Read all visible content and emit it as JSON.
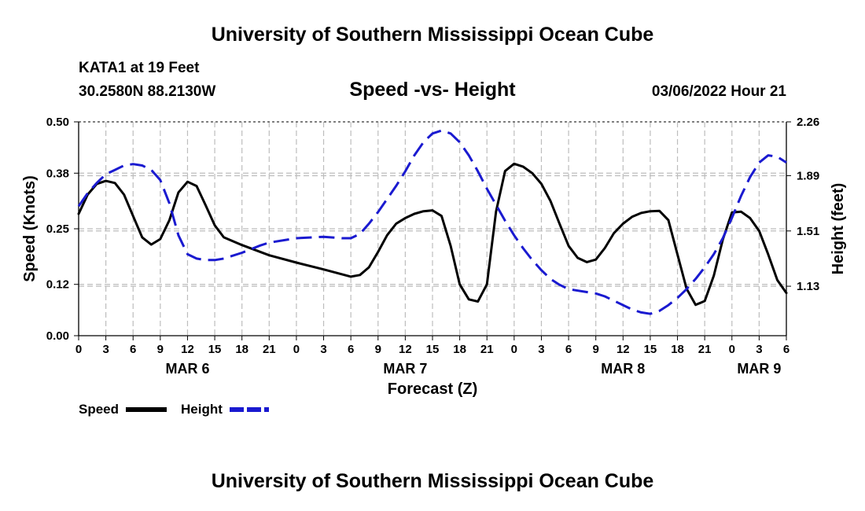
{
  "header": {
    "title": "University of Southern Mississippi Ocean Cube",
    "station": "KATA1 at 19 Feet",
    "coordinates": "30.2580N  88.2130W",
    "datetime": "03/06/2022 Hour 21"
  },
  "footer": {
    "title": "University of Southern Mississippi Ocean Cube"
  },
  "chart_data": {
    "type": "line",
    "title": "Speed -vs- Height",
    "xlabel": "Forecast (Z)",
    "ylabel_left": "Speed (Knots)",
    "ylabel_right": "Height (feet)",
    "x_range_hours": [
      0,
      78
    ],
    "x_tick_step_hours": 3,
    "x_tick_labels": [
      "0",
      "3",
      "6",
      "9",
      "12",
      "15",
      "18",
      "21",
      "0",
      "3",
      "6",
      "9",
      "12",
      "15",
      "18",
      "21",
      "0",
      "3",
      "6",
      "9",
      "12",
      "15",
      "18",
      "21",
      "0",
      "3",
      "6"
    ],
    "date_labels": [
      {
        "label": "MAR 6",
        "hour": 12
      },
      {
        "label": "MAR 7",
        "hour": 36
      },
      {
        "label": "MAR 8",
        "hour": 60
      },
      {
        "label": "MAR 9",
        "hour": 75
      }
    ],
    "ylim_left": [
      0.0,
      0.5
    ],
    "left_ticks": [
      "0.00",
      "0.12",
      "0.25",
      "0.38",
      "0.50"
    ],
    "ylim_right": [
      0.79,
      2.26
    ],
    "right_ticks": [
      "1.13",
      "1.51",
      "1.89",
      "2.26"
    ],
    "grid": true,
    "legend_position": "bottom-left",
    "series": [
      {
        "name": "Speed",
        "axis": "left",
        "color": "#000000",
        "style": "solid",
        "points": [
          [
            0,
            0.285
          ],
          [
            1,
            0.33
          ],
          [
            2,
            0.355
          ],
          [
            3,
            0.362
          ],
          [
            4,
            0.357
          ],
          [
            5,
            0.33
          ],
          [
            6,
            0.28
          ],
          [
            7,
            0.23
          ],
          [
            8,
            0.213
          ],
          [
            9,
            0.226
          ],
          [
            10,
            0.27
          ],
          [
            11,
            0.335
          ],
          [
            12,
            0.36
          ],
          [
            13,
            0.35
          ],
          [
            14,
            0.305
          ],
          [
            15,
            0.258
          ],
          [
            16,
            0.23
          ],
          [
            18,
            0.212
          ],
          [
            21,
            0.188
          ],
          [
            24,
            0.171
          ],
          [
            27,
            0.155
          ],
          [
            30,
            0.138
          ],
          [
            31,
            0.142
          ],
          [
            32,
            0.16
          ],
          [
            33,
            0.196
          ],
          [
            34,
            0.235
          ],
          [
            35,
            0.262
          ],
          [
            36,
            0.275
          ],
          [
            37,
            0.285
          ],
          [
            38,
            0.291
          ],
          [
            39,
            0.293
          ],
          [
            40,
            0.28
          ],
          [
            41,
            0.21
          ],
          [
            42,
            0.12
          ],
          [
            43,
            0.085
          ],
          [
            44,
            0.08
          ],
          [
            45,
            0.12
          ],
          [
            46,
            0.29
          ],
          [
            47,
            0.385
          ],
          [
            48,
            0.402
          ],
          [
            49,
            0.395
          ],
          [
            50,
            0.38
          ],
          [
            51,
            0.355
          ],
          [
            52,
            0.315
          ],
          [
            53,
            0.262
          ],
          [
            54,
            0.21
          ],
          [
            55,
            0.182
          ],
          [
            56,
            0.172
          ],
          [
            57,
            0.178
          ],
          [
            58,
            0.205
          ],
          [
            59,
            0.24
          ],
          [
            60,
            0.262
          ],
          [
            61,
            0.278
          ],
          [
            62,
            0.287
          ],
          [
            63,
            0.291
          ],
          [
            64,
            0.292
          ],
          [
            65,
            0.27
          ],
          [
            66,
            0.19
          ],
          [
            67,
            0.11
          ],
          [
            68,
            0.072
          ],
          [
            69,
            0.081
          ],
          [
            70,
            0.14
          ],
          [
            71,
            0.225
          ],
          [
            72,
            0.288
          ],
          [
            73,
            0.29
          ],
          [
            74,
            0.275
          ],
          [
            75,
            0.245
          ],
          [
            76,
            0.19
          ],
          [
            77,
            0.13
          ],
          [
            78,
            0.1
          ]
        ]
      },
      {
        "name": "Height",
        "axis": "right",
        "color": "#1a1ad0",
        "style": "dashed",
        "points": [
          [
            0,
            1.68
          ],
          [
            1,
            1.77
          ],
          [
            2,
            1.84
          ],
          [
            3,
            1.9
          ],
          [
            4,
            1.93
          ],
          [
            5,
            1.96
          ],
          [
            6,
            1.97
          ],
          [
            7,
            1.96
          ],
          [
            8,
            1.93
          ],
          [
            9,
            1.86
          ],
          [
            10,
            1.7
          ],
          [
            11,
            1.48
          ],
          [
            12,
            1.35
          ],
          [
            13,
            1.32
          ],
          [
            14,
            1.31
          ],
          [
            15,
            1.31
          ],
          [
            16,
            1.32
          ],
          [
            18,
            1.36
          ],
          [
            20,
            1.41
          ],
          [
            21,
            1.43
          ],
          [
            24,
            1.46
          ],
          [
            27,
            1.47
          ],
          [
            29,
            1.46
          ],
          [
            30,
            1.46
          ],
          [
            31,
            1.49
          ],
          [
            32,
            1.56
          ],
          [
            33,
            1.64
          ],
          [
            34,
            1.73
          ],
          [
            35,
            1.82
          ],
          [
            36,
            1.92
          ],
          [
            37,
            2.03
          ],
          [
            38,
            2.12
          ],
          [
            39,
            2.18
          ],
          [
            40,
            2.2
          ],
          [
            41,
            2.18
          ],
          [
            42,
            2.12
          ],
          [
            43,
            2.03
          ],
          [
            44,
            1.92
          ],
          [
            45,
            1.8
          ],
          [
            46,
            1.69
          ],
          [
            47,
            1.58
          ],
          [
            48,
            1.48
          ],
          [
            49,
            1.39
          ],
          [
            50,
            1.31
          ],
          [
            51,
            1.24
          ],
          [
            52,
            1.18
          ],
          [
            53,
            1.14
          ],
          [
            54,
            1.11
          ],
          [
            56,
            1.09
          ],
          [
            57,
            1.08
          ],
          [
            58,
            1.06
          ],
          [
            59,
            1.03
          ],
          [
            60,
            1.0
          ],
          [
            61,
            0.97
          ],
          [
            62,
            0.95
          ],
          [
            63,
            0.94
          ],
          [
            64,
            0.96
          ],
          [
            65,
            1.0
          ],
          [
            66,
            1.05
          ],
          [
            67,
            1.11
          ],
          [
            68,
            1.18
          ],
          [
            69,
            1.26
          ],
          [
            70,
            1.35
          ],
          [
            71,
            1.46
          ],
          [
            72,
            1.6
          ],
          [
            73,
            1.75
          ],
          [
            74,
            1.88
          ],
          [
            75,
            1.98
          ],
          [
            76,
            2.03
          ],
          [
            77,
            2.02
          ],
          [
            78,
            1.98
          ]
        ]
      }
    ]
  }
}
